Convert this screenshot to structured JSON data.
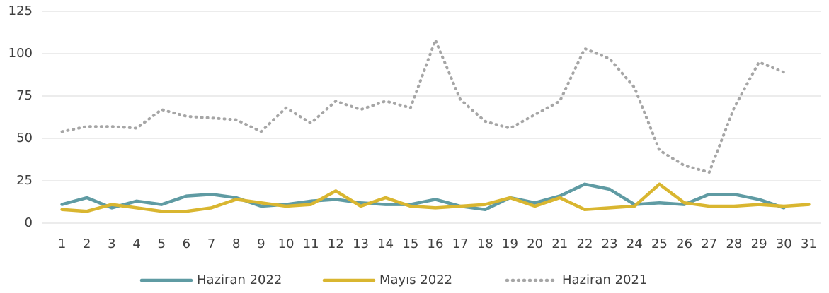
{
  "chart_data": {
    "type": "line",
    "categories": [
      "1",
      "2",
      "3",
      "4",
      "5",
      "6",
      "7",
      "8",
      "9",
      "10",
      "11",
      "12",
      "13",
      "14",
      "15",
      "16",
      "17",
      "18",
      "19",
      "20",
      "21",
      "22",
      "23",
      "24",
      "25",
      "26",
      "27",
      "28",
      "29",
      "30",
      "31"
    ],
    "series": [
      {
        "name": "Haziran 2022",
        "color": "#5f9ba3",
        "style": "solid",
        "values": [
          11,
          15,
          9,
          13,
          11,
          16,
          17,
          15,
          10,
          11,
          13,
          14,
          12,
          11,
          11,
          14,
          10,
          8,
          15,
          12,
          16,
          23,
          20,
          11,
          12,
          11,
          17,
          17,
          14,
          9,
          null
        ]
      },
      {
        "name": "Mayıs 2022",
        "color": "#d9b630",
        "style": "solid",
        "values": [
          8,
          7,
          11,
          9,
          7,
          7,
          9,
          14,
          12,
          10,
          11,
          19,
          10,
          15,
          10,
          9,
          10,
          11,
          15,
          10,
          15,
          8,
          9,
          10,
          23,
          12,
          10,
          10,
          11,
          10,
          11
        ]
      },
      {
        "name": "Haziran 2021",
        "color": "#a6a6a6",
        "style": "dotted",
        "values": [
          54,
          57,
          57,
          56,
          67,
          63,
          62,
          61,
          54,
          68,
          59,
          72,
          67,
          72,
          68,
          108,
          73,
          60,
          56,
          64,
          72,
          103,
          97,
          80,
          43,
          34,
          30,
          68,
          95,
          89,
          null
        ]
      }
    ],
    "ylim": [
      0,
      125
    ],
    "yticks": [
      0,
      25,
      50,
      75,
      100,
      125
    ],
    "grid": true,
    "legend": "bottom"
  }
}
